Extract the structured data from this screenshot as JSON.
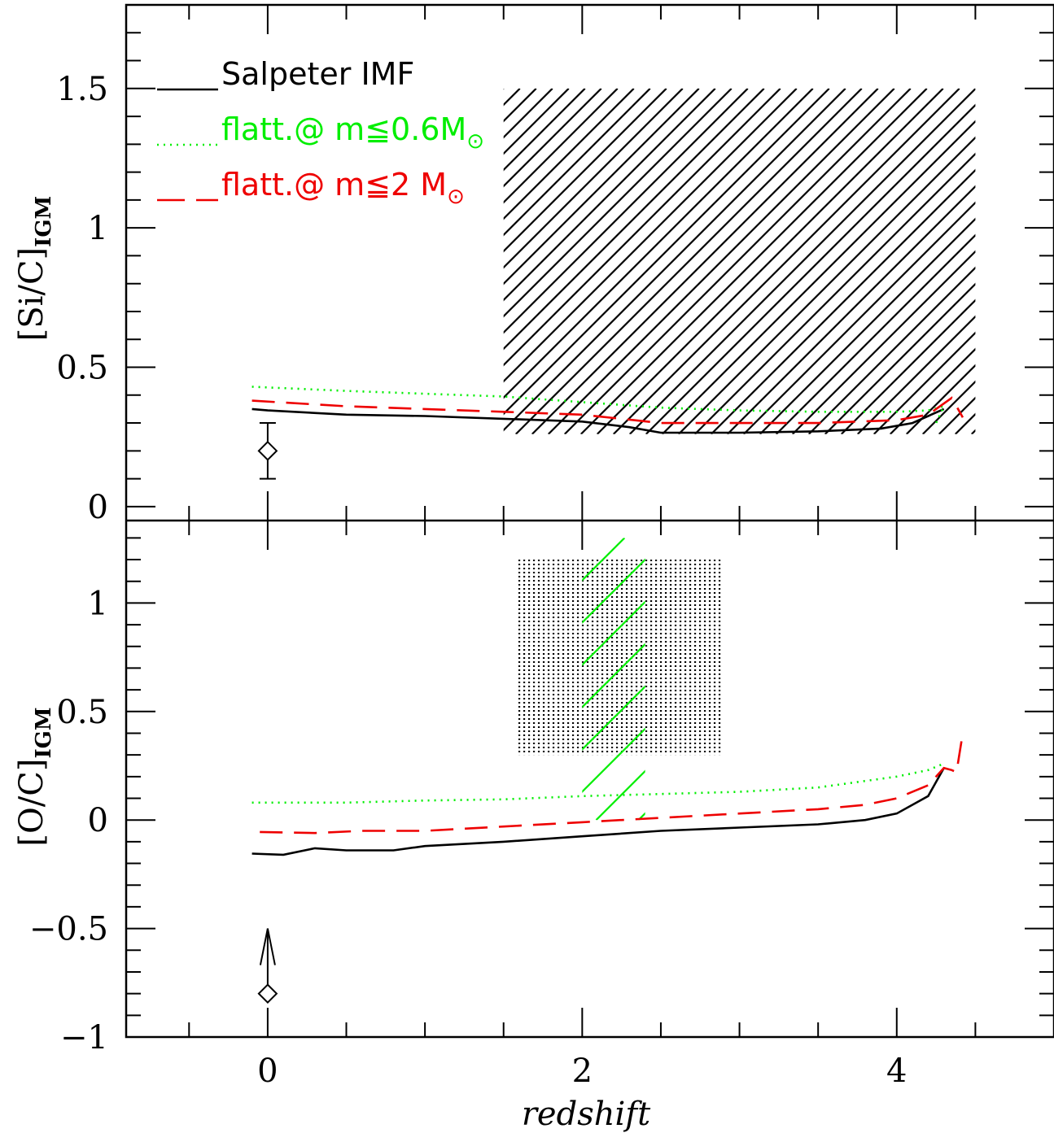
{
  "chart_data": {
    "type": "line",
    "xlabel": "redshift",
    "xlim": [
      -0.9,
      5.0
    ],
    "xticks_major": [
      0,
      2,
      4
    ],
    "xticks_minor_step": 0.5,
    "legend": {
      "placement": "top-left",
      "entries": [
        {
          "label": "Salpeter IMF",
          "color": "#000000",
          "style": "solid"
        },
        {
          "label": "flatt.@ m≦0.6M",
          "subscript_symbol": "⊙",
          "color": "#00ee00",
          "style": "dotted"
        },
        {
          "label": "flatt.@ m≦2 M",
          "subscript_symbol": "⊙",
          "color": "#ee0000",
          "style": "dashed"
        }
      ]
    },
    "panels": [
      {
        "name": "top",
        "ylabel_main": "[Si/C]",
        "ylabel_sub": "IGM",
        "ylim": [
          -0.05,
          1.8
        ],
        "yticks_major": [
          0,
          0.5,
          1,
          1.5
        ],
        "ytick_labels": [
          "0",
          "0.5",
          "1",
          "1.5"
        ],
        "yticks_minor_step": 0.1,
        "series": [
          {
            "color": "#000000",
            "style": "solid",
            "x": [
              -0.1,
              0,
              0.5,
              1.0,
              1.5,
              2.0,
              2.3,
              2.5,
              3.0,
              3.5,
              3.9,
              4.1,
              4.3
            ],
            "y": [
              0.35,
              0.345,
              0.33,
              0.325,
              0.315,
              0.305,
              0.285,
              0.265,
              0.265,
              0.27,
              0.28,
              0.3,
              0.35
            ]
          },
          {
            "color": "#00ee00",
            "style": "dotted",
            "x": [
              -0.1,
              0.5,
              1.0,
              1.5,
              2.0,
              2.5,
              3.0,
              3.5,
              4.0,
              4.2,
              4.3,
              4.25
            ],
            "y": [
              0.43,
              0.415,
              0.405,
              0.395,
              0.375,
              0.355,
              0.345,
              0.34,
              0.34,
              0.345,
              0.36,
              0.3
            ]
          },
          {
            "color": "#ee0000",
            "style": "dashed",
            "x": [
              -0.1,
              0.5,
              1.0,
              1.5,
              2.0,
              2.5,
              3.0,
              3.5,
              4.0,
              4.2,
              4.35,
              4.42
            ],
            "y": [
              0.38,
              0.36,
              0.35,
              0.34,
              0.33,
              0.3,
              0.3,
              0.3,
              0.31,
              0.33,
              0.39,
              0.32
            ]
          }
        ],
        "regions": [
          {
            "type": "hatched",
            "color": "#000000",
            "x": [
              1.5,
              4.5
            ],
            "y": [
              0.26,
              1.5
            ]
          }
        ],
        "points": [
          {
            "x": 0,
            "y": 0.2,
            "err_low": 0.1,
            "err_high": 0.3,
            "marker": "diamond"
          }
        ]
      },
      {
        "name": "bottom",
        "ylabel_main": "[O/C]",
        "ylabel_sub": "IGM",
        "ylim": [
          -1.0,
          1.38
        ],
        "yticks_major": [
          -1,
          -0.5,
          0,
          0.5,
          1
        ],
        "ytick_labels": [
          "−1",
          "−0.5",
          "0",
          "0.5",
          "1"
        ],
        "yticks_minor_step": 0.1,
        "series": [
          {
            "color": "#000000",
            "style": "solid",
            "x": [
              -0.1,
              0.1,
              0.3,
              0.5,
              0.8,
              1.0,
              1.5,
              2.0,
              2.5,
              3.0,
              3.5,
              3.8,
              4.0,
              4.2,
              4.3
            ],
            "y": [
              -0.155,
              -0.16,
              -0.13,
              -0.14,
              -0.14,
              -0.12,
              -0.1,
              -0.075,
              -0.05,
              -0.035,
              -0.02,
              0.0,
              0.03,
              0.11,
              0.24
            ]
          },
          {
            "color": "#00ee00",
            "style": "dotted",
            "x": [
              -0.1,
              0.5,
              1.0,
              1.5,
              2.0,
              2.5,
              3.0,
              3.5,
              4.0,
              4.2,
              4.3
            ],
            "y": [
              0.08,
              0.08,
              0.09,
              0.095,
              0.11,
              0.12,
              0.13,
              0.15,
              0.2,
              0.23,
              0.26
            ]
          },
          {
            "color": "#ee0000",
            "style": "dashed",
            "x": [
              -0.05,
              0.3,
              0.6,
              1.0,
              1.5,
              2.0,
              2.5,
              3.0,
              3.5,
              3.8,
              4.0,
              4.2,
              4.3,
              4.35,
              4.38,
              4.42
            ],
            "y": [
              -0.055,
              -0.06,
              -0.05,
              -0.05,
              -0.03,
              -0.01,
              0.01,
              0.03,
              0.05,
              0.07,
              0.1,
              0.16,
              0.24,
              0.23,
              0.22,
              0.4
            ]
          }
        ],
        "regions": [
          {
            "type": "dotted-fill",
            "color": "#000000",
            "x": [
              1.6,
              2.9
            ],
            "y": [
              0.3,
              1.2
            ]
          },
          {
            "type": "hatched",
            "color": "#00ee00",
            "x": [
              2.0,
              2.4
            ],
            "y": [
              0.0,
              1.3
            ]
          }
        ],
        "points": [
          {
            "x": 0,
            "y": -0.8,
            "marker": "diamond",
            "lower_limit_arrow_to": -0.5
          }
        ]
      }
    ]
  }
}
